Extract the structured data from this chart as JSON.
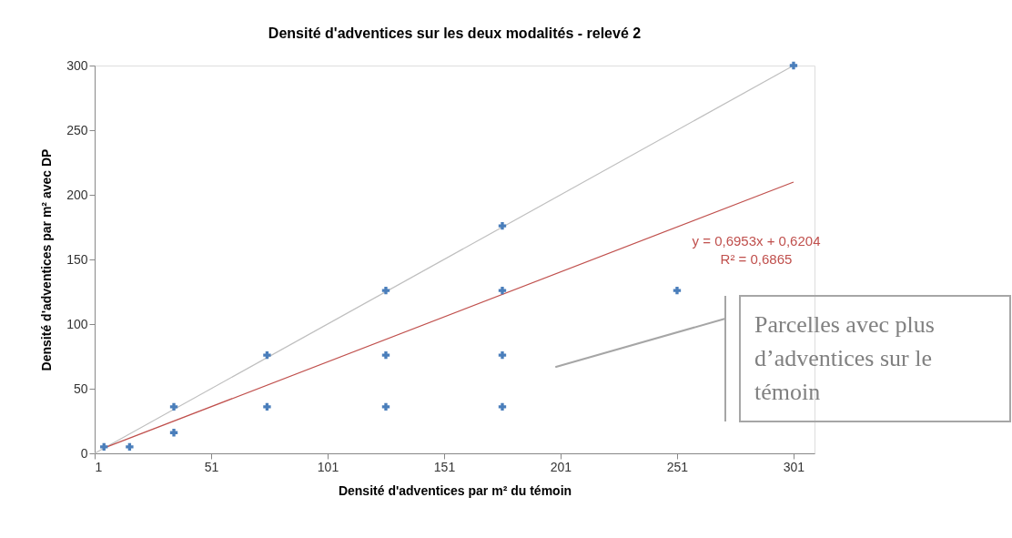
{
  "chart_data": {
    "type": "scatter",
    "title": "Densité d'adventices sur les deux modalités - relevé 2",
    "xlabel": "Densité d'adventices par m² du témoin",
    "ylabel": "Densité d'adventices par m² avec DP",
    "xlim": [
      1,
      310
    ],
    "xticks": [
      1,
      51,
      101,
      151,
      201,
      251,
      301
    ],
    "ylim": [
      0,
      300
    ],
    "yticks": [
      0,
      50,
      100,
      150,
      200,
      250,
      300
    ],
    "grid": false,
    "series": [
      {
        "type": "line",
        "color": "#bfbfbf",
        "x": [
          1,
          301
        ],
        "values": [
          0,
          300
        ],
        "marker": "none"
      },
      {
        "type": "line",
        "color": "#c0504d",
        "x": [
          5,
          301
        ],
        "values": [
          4.1,
          209.9
        ],
        "marker": "none"
      },
      {
        "color": "#4a7ebb",
        "marker": "cross",
        "x": [
          5,
          16,
          35,
          35,
          75,
          75,
          126,
          126,
          126,
          176,
          176,
          176,
          176,
          251,
          301
        ],
        "values": [
          5,
          5,
          36,
          16,
          76,
          36,
          126,
          76,
          36,
          176,
          126,
          76,
          36,
          126,
          300
        ]
      }
    ],
    "annotations": [
      "y = 0,6953x + 0,6204",
      "R² = 0,6865",
      "Parcelles avec plus d’adventices sur le témoin"
    ]
  }
}
